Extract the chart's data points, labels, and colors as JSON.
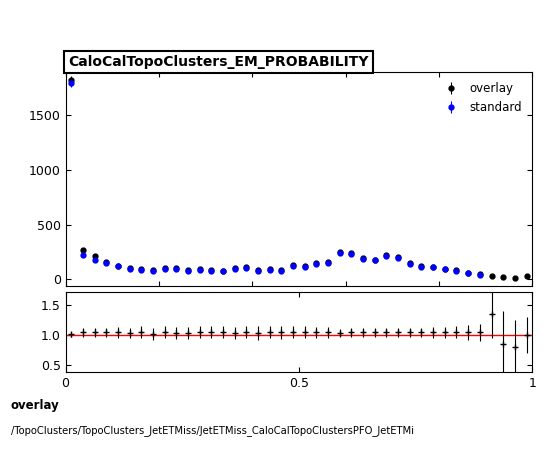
{
  "title": "CaloCalTopoClusters_EM_PROBABILITY",
  "legend_entries": [
    "overlay",
    "standard"
  ],
  "footer_line1": "overlay",
  "footer_line2": "/TopoClusters/TopoClusters_JetETMiss/JetETMiss_CaloCalTopoClustersPFO_JetETMi",
  "xlim": [
    0,
    1
  ],
  "main_ylim": [
    -60,
    1900
  ],
  "ratio_ylim": [
    0.38,
    1.72
  ],
  "overlay_x": [
    0.0125,
    0.0375,
    0.0625,
    0.0875,
    0.1125,
    0.1375,
    0.1625,
    0.1875,
    0.2125,
    0.2375,
    0.2625,
    0.2875,
    0.3125,
    0.3375,
    0.3625,
    0.3875,
    0.4125,
    0.4375,
    0.4625,
    0.4875,
    0.5125,
    0.5375,
    0.5625,
    0.5875,
    0.6125,
    0.6375,
    0.6625,
    0.6875,
    0.7125,
    0.7375,
    0.7625,
    0.7875,
    0.8125,
    0.8375,
    0.8625,
    0.8875,
    0.9125,
    0.9375,
    0.9625,
    0.9875
  ],
  "overlay_y": [
    1820,
    265,
    215,
    160,
    125,
    100,
    90,
    80,
    100,
    100,
    80,
    90,
    80,
    75,
    100,
    110,
    80,
    90,
    80,
    130,
    120,
    150,
    155,
    250,
    240,
    195,
    180,
    220,
    200,
    145,
    120,
    115,
    95,
    80,
    60,
    45,
    30,
    20,
    10,
    30
  ],
  "standard_x": [
    0.0125,
    0.0375,
    0.0625,
    0.0875,
    0.1125,
    0.1375,
    0.1625,
    0.1875,
    0.2125,
    0.2375,
    0.2625,
    0.2875,
    0.3125,
    0.3375,
    0.3625,
    0.3875,
    0.4125,
    0.4375,
    0.4625,
    0.4875,
    0.5125,
    0.5375,
    0.5625,
    0.5875,
    0.6125,
    0.6375,
    0.6625,
    0.6875,
    0.7125,
    0.7375,
    0.7625,
    0.7875,
    0.8125,
    0.8375,
    0.8625,
    0.8875
  ],
  "standard_y": [
    1800,
    220,
    175,
    148,
    118,
    95,
    83,
    78,
    94,
    96,
    77,
    86,
    76,
    71,
    95,
    104,
    76,
    85,
    76,
    125,
    114,
    143,
    149,
    242,
    232,
    188,
    172,
    212,
    192,
    140,
    115,
    110,
    90,
    76,
    55,
    42
  ],
  "ratio_x": [
    0.0125,
    0.0375,
    0.0625,
    0.0875,
    0.1125,
    0.1375,
    0.1625,
    0.1875,
    0.2125,
    0.2375,
    0.2625,
    0.2875,
    0.3125,
    0.3375,
    0.3625,
    0.3875,
    0.4125,
    0.4375,
    0.4625,
    0.4875,
    0.5125,
    0.5375,
    0.5625,
    0.5875,
    0.6125,
    0.6375,
    0.6625,
    0.6875,
    0.7125,
    0.7375,
    0.7625,
    0.7875,
    0.8125,
    0.8375,
    0.8625,
    0.8875,
    0.9125,
    0.9375,
    0.9625,
    0.9875
  ],
  "ratio_y": [
    1.01,
    1.04,
    1.04,
    1.04,
    1.04,
    1.03,
    1.04,
    1.02,
    1.04,
    1.03,
    1.03,
    1.04,
    1.04,
    1.04,
    1.03,
    1.04,
    1.03,
    1.04,
    1.04,
    1.04,
    1.04,
    1.04,
    1.04,
    1.03,
    1.04,
    1.04,
    1.04,
    1.04,
    1.04,
    1.04,
    1.04,
    1.04,
    1.04,
    1.04,
    1.04,
    1.04,
    1.35,
    0.85,
    0.8,
    1.0
  ],
  "ratio_yerr": [
    0.04,
    0.07,
    0.08,
    0.08,
    0.09,
    0.09,
    0.1,
    0.1,
    0.1,
    0.1,
    0.1,
    0.1,
    0.1,
    0.1,
    0.1,
    0.1,
    0.11,
    0.1,
    0.11,
    0.1,
    0.1,
    0.09,
    0.09,
    0.07,
    0.07,
    0.07,
    0.07,
    0.07,
    0.07,
    0.08,
    0.08,
    0.09,
    0.09,
    0.1,
    0.12,
    0.14,
    0.4,
    0.55,
    0.45,
    0.3
  ],
  "background_color": "#ffffff",
  "overlay_color": "black",
  "standard_color": "blue",
  "ratio_line_color": "red"
}
